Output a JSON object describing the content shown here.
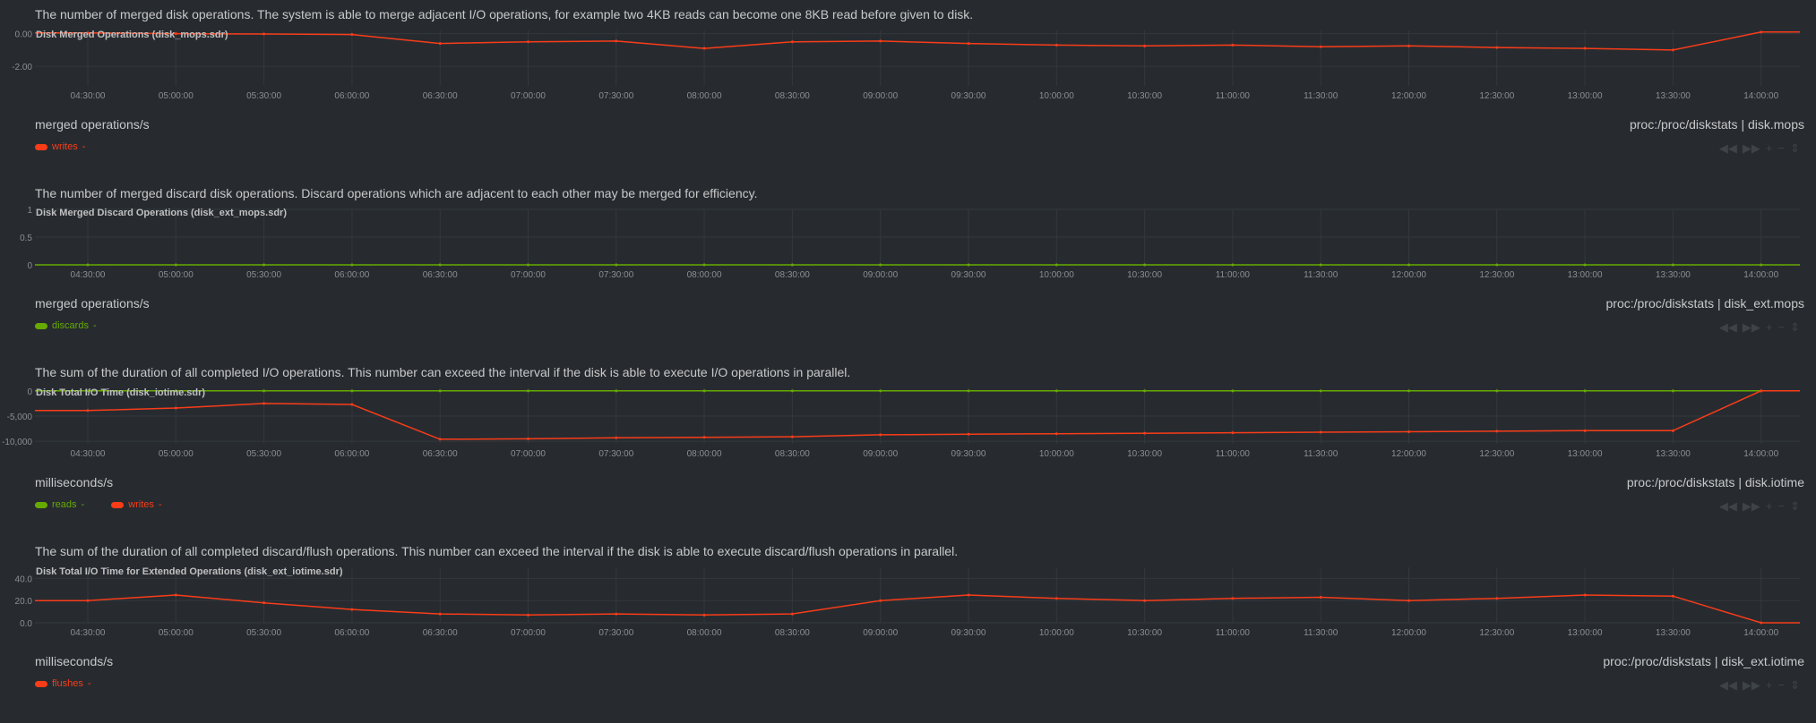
{
  "x_ticks": [
    "04:30:00",
    "05:00:00",
    "05:30:00",
    "06:00:00",
    "06:30:00",
    "07:00:00",
    "07:30:00",
    "08:00:00",
    "08:30:00",
    "09:00:00",
    "09:30:00",
    "10:00:00",
    "10:30:00",
    "11:00:00",
    "11:30:00",
    "12:00:00",
    "12:30:00",
    "13:00:00",
    "13:30:00",
    "14:00:00"
  ],
  "toolbox": {
    "prev": "◀◀",
    "next": "▶▶",
    "zoom_in": "+",
    "zoom_out": "−",
    "resize": "⇕"
  },
  "panels": [
    {
      "description": "The number of merged disk operations. The system is able to merge adjacent I/O operations, for example two 4KB reads can become one 8KB read before given to disk.",
      "title": "Disk Merged Operations (disk_mops.sdr)",
      "units": "merged operations/s",
      "context": "proc:/proc/diskstats | disk.mops",
      "legend": [
        {
          "name": "writes",
          "value": "-",
          "color": "#f93c18"
        }
      ]
    },
    {
      "description": "The number of merged discard disk operations. Discard operations which are adjacent to each other may be merged for efficiency.",
      "title": "Disk Merged Discard Operations (disk_ext_mops.sdr)",
      "units": "merged operations/s",
      "context": "proc:/proc/diskstats | disk_ext.mops",
      "legend": [
        {
          "name": "discards",
          "value": "-",
          "color": "#66aa00"
        }
      ]
    },
    {
      "description": "The sum of the duration of all completed I/O operations. This number can exceed the interval if the disk is able to execute I/O operations in parallel.",
      "title": "Disk Total I/O Time (disk_iotime.sdr)",
      "units": "milliseconds/s",
      "context": "proc:/proc/diskstats | disk.iotime",
      "legend": [
        {
          "name": "reads",
          "value": "-",
          "color": "#66aa00"
        },
        {
          "name": "writes",
          "value": "-",
          "color": "#f93c18"
        }
      ]
    },
    {
      "description": "The sum of the duration of all completed discard/flush operations. This number can exceed the interval if the disk is able to execute discard/flush operations in parallel.",
      "title": "Disk Total I/O Time for Extended Operations (disk_ext_iotime.sdr)",
      "units": "milliseconds/s",
      "context": "proc:/proc/diskstats | disk_ext.iotime",
      "legend": [
        {
          "name": "flushes",
          "value": "-",
          "color": "#f93c18"
        }
      ]
    }
  ],
  "chart_data": [
    {
      "type": "line",
      "title": "Disk Merged Operations (disk_mops.sdr)",
      "ylabel": "merged operations/s",
      "y_ticks": [
        "0.00",
        "-2.00"
      ],
      "ylim": [
        -3.2,
        0.2
      ],
      "x": [
        "04:30:00",
        "05:00:00",
        "05:30:00",
        "06:00:00",
        "06:30:00",
        "07:00:00",
        "07:30:00",
        "08:00:00",
        "08:30:00",
        "09:00:00",
        "09:30:00",
        "10:00:00",
        "10:30:00",
        "11:00:00",
        "11:30:00",
        "12:00:00",
        "12:30:00",
        "13:00:00",
        "13:30:00",
        "14:00:00"
      ],
      "series": [
        {
          "name": "writes",
          "color": "#f93c18",
          "values": [
            0.05,
            0.0,
            -0.02,
            -0.05,
            -0.6,
            -0.5,
            -0.45,
            -0.9,
            -0.5,
            -0.45,
            -0.6,
            -0.7,
            -0.75,
            -0.7,
            -0.8,
            -0.75,
            -0.85,
            -0.9,
            -1.0,
            0.1
          ]
        }
      ],
      "grid": true
    },
    {
      "type": "line",
      "title": "Disk Merged Discard Operations (disk_ext_mops.sdr)",
      "ylabel": "merged operations/s",
      "y_ticks": [
        "1",
        "0.5",
        "0"
      ],
      "ylim": [
        0,
        1
      ],
      "x": [
        "04:30:00",
        "05:00:00",
        "05:30:00",
        "06:00:00",
        "06:30:00",
        "07:00:00",
        "07:30:00",
        "08:00:00",
        "08:30:00",
        "09:00:00",
        "09:30:00",
        "10:00:00",
        "10:30:00",
        "11:00:00",
        "11:30:00",
        "12:00:00",
        "12:30:00",
        "13:00:00",
        "13:30:00",
        "14:00:00"
      ],
      "series": [
        {
          "name": "discards",
          "color": "#66aa00",
          "values": [
            0,
            0,
            0,
            0,
            0,
            0,
            0,
            0,
            0,
            0,
            0,
            0,
            0,
            0,
            0,
            0,
            0,
            0,
            0,
            0
          ]
        }
      ],
      "grid": true
    },
    {
      "type": "line",
      "title": "Disk Total I/O Time (disk_iotime.sdr)",
      "ylabel": "milliseconds/s",
      "y_ticks": [
        "0",
        "-5,000",
        "-10,000"
      ],
      "ylim": [
        -10500,
        500
      ],
      "x": [
        "04:30:00",
        "05:00:00",
        "05:30:00",
        "06:00:00",
        "06:30:00",
        "07:00:00",
        "07:30:00",
        "08:00:00",
        "08:30:00",
        "09:00:00",
        "09:30:00",
        "10:00:00",
        "10:30:00",
        "11:00:00",
        "11:30:00",
        "12:00:00",
        "12:30:00",
        "13:00:00",
        "13:30:00",
        "14:00:00"
      ],
      "series": [
        {
          "name": "reads",
          "color": "#66aa00",
          "values": [
            0,
            0,
            0,
            0,
            0,
            0,
            0,
            0,
            0,
            0,
            0,
            0,
            0,
            0,
            0,
            0,
            0,
            0,
            0,
            0
          ]
        },
        {
          "name": "writes",
          "color": "#f93c18",
          "values": [
            -3900,
            -3400,
            -2500,
            -2700,
            -9600,
            -9500,
            -9300,
            -9200,
            -9100,
            -8700,
            -8600,
            -8500,
            -8400,
            -8300,
            -8200,
            -8100,
            -8000,
            -7900,
            -7900,
            0
          ]
        }
      ],
      "grid": true
    },
    {
      "type": "line",
      "title": "Disk Total I/O Time for Extended Operations (disk_ext_iotime.sdr)",
      "ylabel": "milliseconds/s",
      "y_ticks": [
        "40.0",
        "20.0",
        "0.0"
      ],
      "ylim": [
        0,
        50
      ],
      "x": [
        "04:30:00",
        "05:00:00",
        "05:30:00",
        "06:00:00",
        "06:30:00",
        "07:00:00",
        "07:30:00",
        "08:00:00",
        "08:30:00",
        "09:00:00",
        "09:30:00",
        "10:00:00",
        "10:30:00",
        "11:00:00",
        "11:30:00",
        "12:00:00",
        "12:30:00",
        "13:00:00",
        "13:30:00",
        "14:00:00"
      ],
      "series": [
        {
          "name": "flushes",
          "color": "#f93c18",
          "values": [
            20,
            25,
            18,
            12,
            8,
            7,
            8,
            7,
            8,
            20,
            25,
            22,
            20,
            22,
            23,
            20,
            22,
            25,
            24,
            0
          ]
        }
      ],
      "grid": true
    }
  ]
}
